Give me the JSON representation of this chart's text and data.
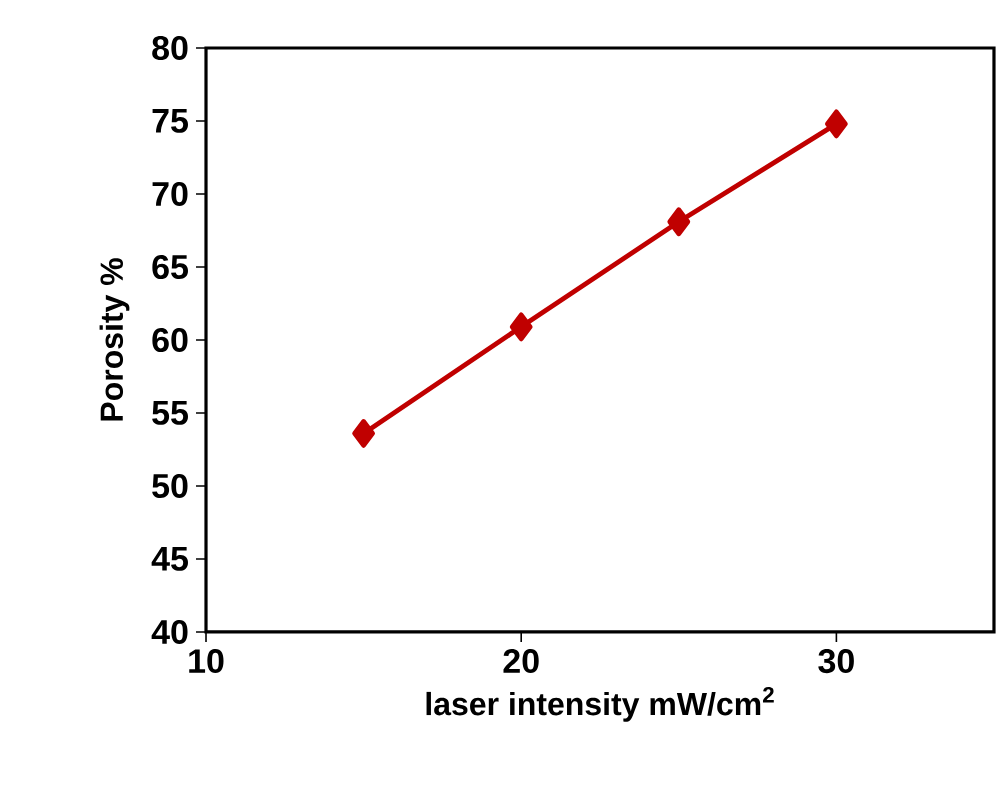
{
  "chart_data": {
    "type": "line",
    "xlabel": "laser intensity mW/cm$^{2}$",
    "ylabel": "Porosity %",
    "x": [
      15,
      20,
      25,
      30
    ],
    "series": [
      {
        "color": "#c00000",
        "values": [
          53.6,
          60.9,
          68.1,
          74.8
        ]
      }
    ],
    "xlim": [
      10,
      35
    ],
    "ylim": [
      40,
      80
    ],
    "xticks": [
      10,
      20,
      30
    ],
    "yticks": [
      40,
      45,
      50,
      55,
      60,
      65,
      70,
      75,
      80
    ],
    "marker": "diamond",
    "line_style": "solid"
  }
}
